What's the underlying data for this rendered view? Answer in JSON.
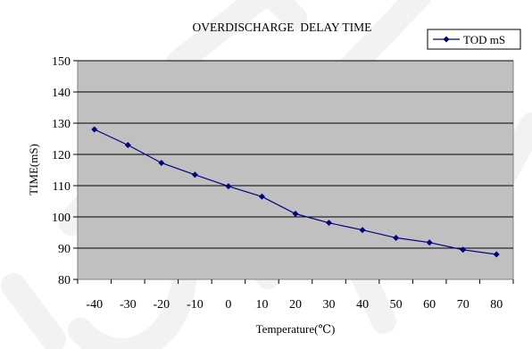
{
  "chart_data": {
    "type": "line",
    "title": "OVERDISCHARGE  DELAY TIME",
    "xlabel": "Temperature(℃)",
    "ylabel": "TIME(mS)",
    "categories": [
      "-40",
      "-30",
      "-20",
      "-10",
      "0",
      "10",
      "20",
      "30",
      "40",
      "50",
      "60",
      "70",
      "80"
    ],
    "yticks": [
      "80",
      "90",
      "100",
      "110",
      "120",
      "130",
      "140",
      "150"
    ],
    "ylim": [
      80,
      150
    ],
    "grid": true,
    "legend_position": "top-right",
    "series": [
      {
        "name": "TOD mS",
        "values": [
          128,
          123,
          117.3,
          113.5,
          109.8,
          106.5,
          101,
          98.1,
          95.8,
          93.3,
          91.8,
          89.5,
          88
        ],
        "color": "#000080",
        "marker": "diamond"
      }
    ],
    "colors": {
      "plot_background": "#c0c0c0",
      "gridline": "#000000",
      "line": "#000080",
      "watermark": "#f2f2f2"
    }
  }
}
